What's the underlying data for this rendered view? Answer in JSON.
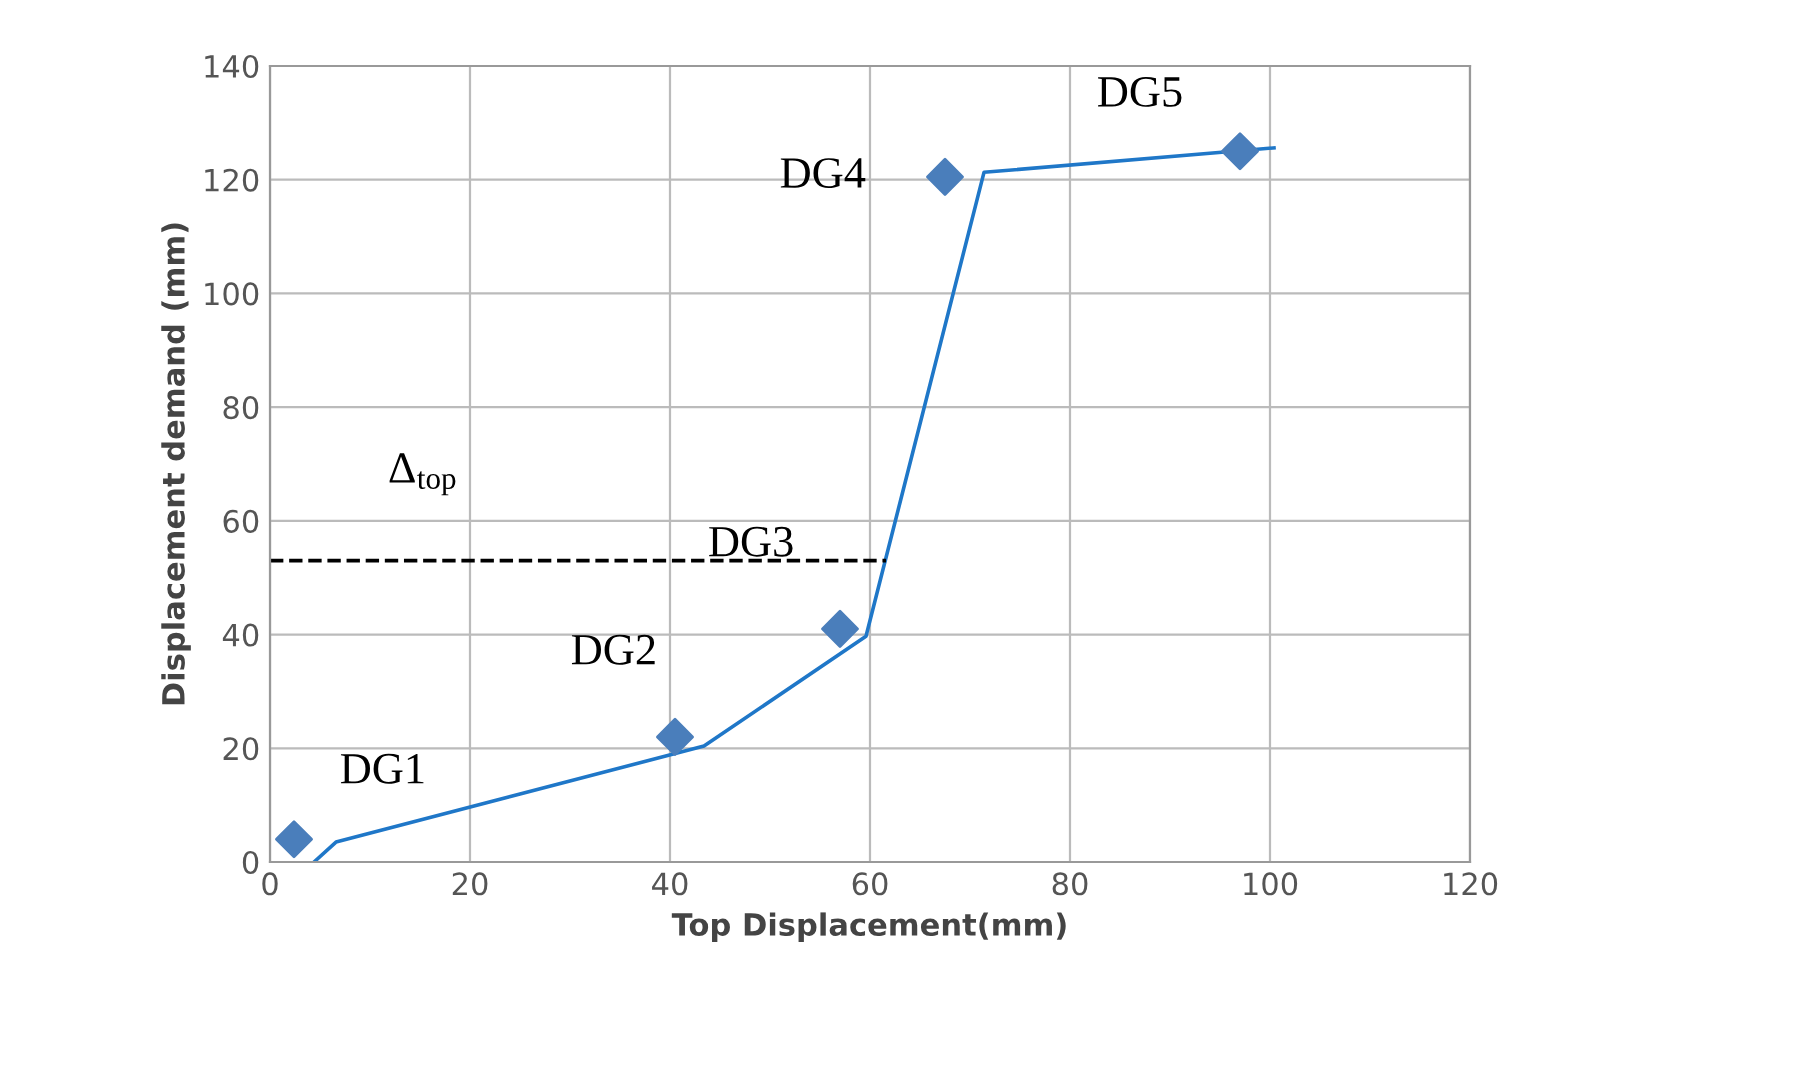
{
  "chart_data": {
    "type": "scatter",
    "xlabel": "Top Displacement(mm)",
    "ylabel": "Displacement demand (mm)",
    "xlim": [
      0,
      120
    ],
    "ylim": [
      0,
      140
    ],
    "xticks": [
      0,
      20,
      40,
      60,
      80,
      100,
      120
    ],
    "yticks": [
      0,
      20,
      40,
      60,
      80,
      100,
      120,
      140
    ],
    "grid": true,
    "series": [
      {
        "color": "#4a7ebb",
        "marker": "diamond",
        "x": [
          2.4,
          40.5,
          57,
          67.5,
          97
        ],
        "values": [
          4,
          22,
          41,
          120.5,
          125
        ],
        "value_labels": [
          "DG1",
          "DG2",
          "DG3",
          "DG4",
          "DG5"
        ]
      },
      {
        "type": "line",
        "color": "#1f77c8",
        "line_style": "solid",
        "x": [
          4.4,
          6.6,
          43.4,
          59.6,
          71.4,
          100.4
        ],
        "values": [
          0,
          3.5,
          20.4,
          39.7,
          121.3,
          125.6
        ]
      },
      {
        "type": "line",
        "name": "Δ$_{top}$",
        "color": "#000000",
        "line_style": "dashed",
        "x": [
          0,
          61.6
        ],
        "values": [
          53,
          53
        ]
      }
    ]
  }
}
